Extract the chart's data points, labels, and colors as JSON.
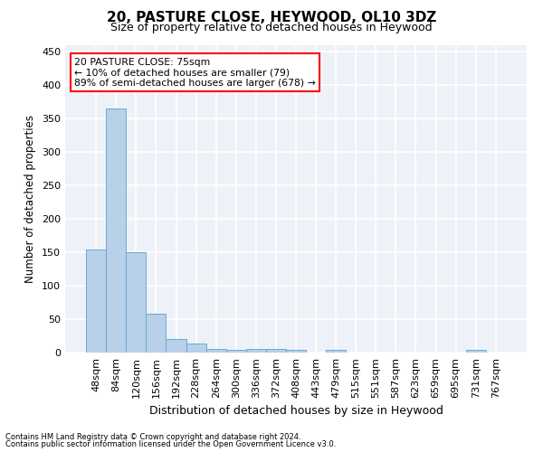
{
  "title": "20, PASTURE CLOSE, HEYWOOD, OL10 3DZ",
  "subtitle": "Size of property relative to detached houses in Heywood",
  "xlabel": "Distribution of detached houses by size in Heywood",
  "ylabel": "Number of detached properties",
  "footnote1": "Contains HM Land Registry data © Crown copyright and database right 2024.",
  "footnote2": "Contains public sector information licensed under the Open Government Licence v3.0.",
  "categories": [
    "48sqm",
    "84sqm",
    "120sqm",
    "156sqm",
    "192sqm",
    "228sqm",
    "264sqm",
    "300sqm",
    "336sqm",
    "372sqm",
    "408sqm",
    "443sqm",
    "479sqm",
    "515sqm",
    "551sqm",
    "587sqm",
    "623sqm",
    "659sqm",
    "695sqm",
    "731sqm",
    "767sqm"
  ],
  "values": [
    154,
    365,
    150,
    58,
    20,
    13,
    6,
    4,
    5,
    6,
    4,
    0,
    4,
    0,
    0,
    0,
    0,
    0,
    0,
    4,
    0
  ],
  "bar_color": "#b8d0e8",
  "bar_edge_color": "#6aaad4",
  "annotation_line1": "20 PASTURE CLOSE: 75sqm",
  "annotation_line2": "← 10% of detached houses are smaller (79)",
  "annotation_line3": "89% of semi-detached houses are larger (678) →",
  "annotation_box_color": "white",
  "annotation_box_edge_color": "red",
  "background_color": "#eef2f8",
  "grid_color": "white",
  "ylim": [
    0,
    460
  ],
  "yticks": [
    0,
    50,
    100,
    150,
    200,
    250,
    300,
    350,
    400,
    450
  ],
  "title_fontsize": 11,
  "subtitle_fontsize": 9,
  "ylabel_fontsize": 8.5,
  "xlabel_fontsize": 9,
  "tick_fontsize": 8,
  "footnote_fontsize": 6
}
